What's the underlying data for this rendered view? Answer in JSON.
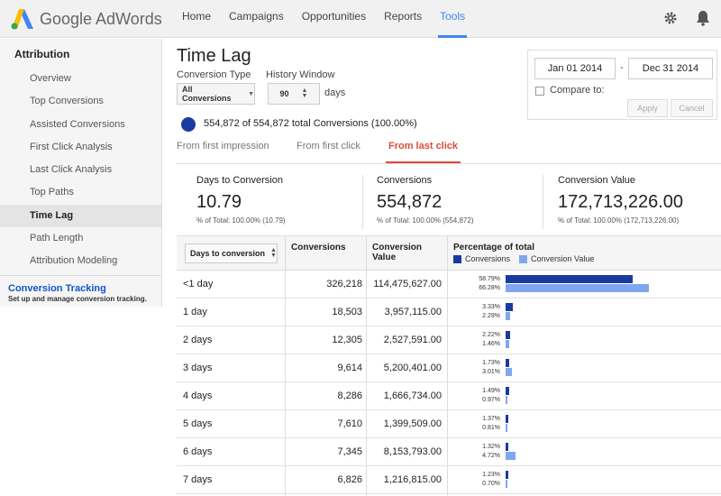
{
  "app": {
    "name": "Google AdWords"
  },
  "nav": [
    {
      "label": "Home",
      "active": false
    },
    {
      "label": "Campaigns",
      "active": false
    },
    {
      "label": "Opportunities",
      "active": false
    },
    {
      "label": "Reports",
      "active": false
    },
    {
      "label": "Tools",
      "active": true
    }
  ],
  "icons": {
    "settings": "gear-icon",
    "notifications": "bell-icon"
  },
  "sidebar": {
    "heading": "Attribution",
    "items": [
      {
        "label": "Overview",
        "active": false
      },
      {
        "label": "Top Conversions",
        "active": false
      },
      {
        "label": "Assisted Conversions",
        "active": false
      },
      {
        "label": "First Click Analysis",
        "active": false
      },
      {
        "label": "Last Click Analysis",
        "active": false
      },
      {
        "label": "Top Paths",
        "active": false
      },
      {
        "label": "Time Lag",
        "active": true
      },
      {
        "label": "Path Length",
        "active": false
      },
      {
        "label": "Attribution Modeling",
        "active": false
      }
    ],
    "conversion_tracking": {
      "title": "Conversion Tracking",
      "subtitle": "Set up and manage conversion tracking."
    }
  },
  "page": {
    "title": "Time Lag",
    "conversion_type_label": "Conversion Type",
    "conversion_type_value": "All Conversions",
    "history_window_label": "History Window",
    "history_window_value": "90",
    "history_window_unit": "days"
  },
  "date_range": {
    "start": "Jan 01 2014",
    "separator": "-",
    "end": "Dec 31 2014",
    "compare_label": "Compare to:",
    "compare_checked": false,
    "apply_label": "Apply",
    "cancel_label": "Cancel"
  },
  "summary": {
    "text": "554,872 of 554,872 total Conversions (100.00%)",
    "dot_color": "#1a3aa0"
  },
  "tabs": [
    {
      "label": "From first impression",
      "active": false
    },
    {
      "label": "From first click",
      "active": false
    },
    {
      "label": "From last click",
      "active": true
    }
  ],
  "kpis": [
    {
      "label": "Days to Conversion",
      "value": "10.79",
      "sub": "% of Total: 100.00% (10.79)"
    },
    {
      "label": "Conversions",
      "value": "554,872",
      "sub": "% of Total: 100.00% (554,872)"
    },
    {
      "label": "Conversion Value",
      "value": "172,713,226.00",
      "sub": "% of Total: 100.00% (172,713,226.00)"
    }
  ],
  "table": {
    "dimension_select": "Days to conversion",
    "col_conversions": "Conversions",
    "col_value_line1": "Conversion",
    "col_value_line2": "Value",
    "col_pct": "Percentage of total",
    "legend_conv": "Conversions",
    "legend_value": "Conversion Value",
    "color_conv": "#1a3aa0",
    "color_value": "#7fa7ee",
    "rows": [
      {
        "label": "<1 day",
        "conversions": "326,218",
        "value": "114,475,627.00",
        "pct_conv": "58.79%",
        "pct_value": "66.28%",
        "conv_frac": 0.5879,
        "value_frac": 0.6628
      },
      {
        "label": "1 day",
        "conversions": "18,503",
        "value": "3,957,115.00",
        "pct_conv": "3.33%",
        "pct_value": "2.29%",
        "conv_frac": 0.0333,
        "value_frac": 0.0229
      },
      {
        "label": "2 days",
        "conversions": "12,305",
        "value": "2,527,591.00",
        "pct_conv": "2.22%",
        "pct_value": "1.46%",
        "conv_frac": 0.0222,
        "value_frac": 0.0146
      },
      {
        "label": "3 days",
        "conversions": "9,614",
        "value": "5,200,401.00",
        "pct_conv": "1.73%",
        "pct_value": "3.01%",
        "conv_frac": 0.0173,
        "value_frac": 0.0301
      },
      {
        "label": "4 days",
        "conversions": "8,286",
        "value": "1,666,734.00",
        "pct_conv": "1.49%",
        "pct_value": "0.97%",
        "conv_frac": 0.0149,
        "value_frac": 0.0097
      },
      {
        "label": "5 days",
        "conversions": "7,610",
        "value": "1,399,509.00",
        "pct_conv": "1.37%",
        "pct_value": "0.81%",
        "conv_frac": 0.0137,
        "value_frac": 0.0081
      },
      {
        "label": "6 days",
        "conversions": "7,345",
        "value": "8,153,793.00",
        "pct_conv": "1.32%",
        "pct_value": "4.72%",
        "conv_frac": 0.0132,
        "value_frac": 0.0472
      },
      {
        "label": "7 days",
        "conversions": "6,826",
        "value": "1,216,815.00",
        "pct_conv": "1.23%",
        "pct_value": "0.70%",
        "conv_frac": 0.0123,
        "value_frac": 0.007
      }
    ]
  }
}
